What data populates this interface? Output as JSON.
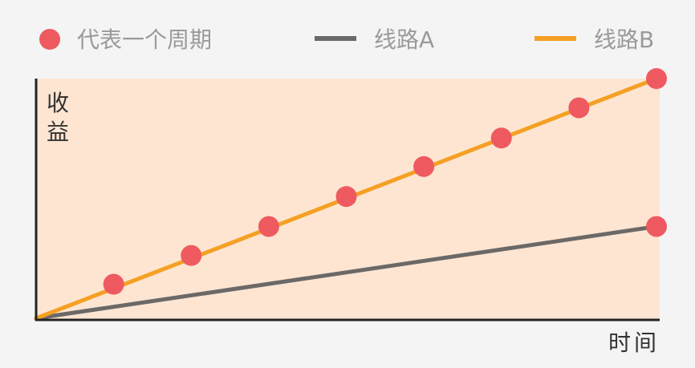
{
  "colors": {
    "background": "#f4f4f4",
    "plot_area": "#fde5d2",
    "cycle_marker": "#ee5a5f",
    "line_a": "#6b6967",
    "line_b": "#f5a024",
    "axis": "#222222",
    "legend_text": "#9a9a9a"
  },
  "legend": [
    {
      "label": "代表一个周期",
      "symbol": "circle",
      "color": "#ee5a5f"
    },
    {
      "label": "线路A",
      "symbol": "line",
      "color": "#6b6967"
    },
    {
      "label": "线路B",
      "symbol": "line",
      "color": "#f5a024"
    }
  ],
  "chart_data": {
    "type": "line",
    "xlabel": "时间",
    "ylabel": "收益",
    "xlim": [
      0,
      8
    ],
    "ylim": [
      0,
      10
    ],
    "grid": false,
    "legend_position": "top",
    "series": [
      {
        "name": "线路A",
        "color": "#6b6967",
        "x": [
          0,
          8
        ],
        "y": [
          0,
          3.83
        ],
        "markers": [
          {
            "x": 8,
            "y": 3.83
          }
        ]
      },
      {
        "name": "线路B",
        "color": "#f5a024",
        "x": [
          0,
          8
        ],
        "y": [
          0,
          10
        ],
        "markers": [
          {
            "x": 1,
            "y": 1.42
          },
          {
            "x": 2,
            "y": 2.62
          },
          {
            "x": 3,
            "y": 3.83
          },
          {
            "x": 4,
            "y": 5.08
          },
          {
            "x": 5,
            "y": 6.33
          },
          {
            "x": 6,
            "y": 7.52
          },
          {
            "x": 7,
            "y": 8.78
          },
          {
            "x": 8,
            "y": 10
          }
        ]
      }
    ],
    "marker_meaning": "代表一个周期"
  }
}
